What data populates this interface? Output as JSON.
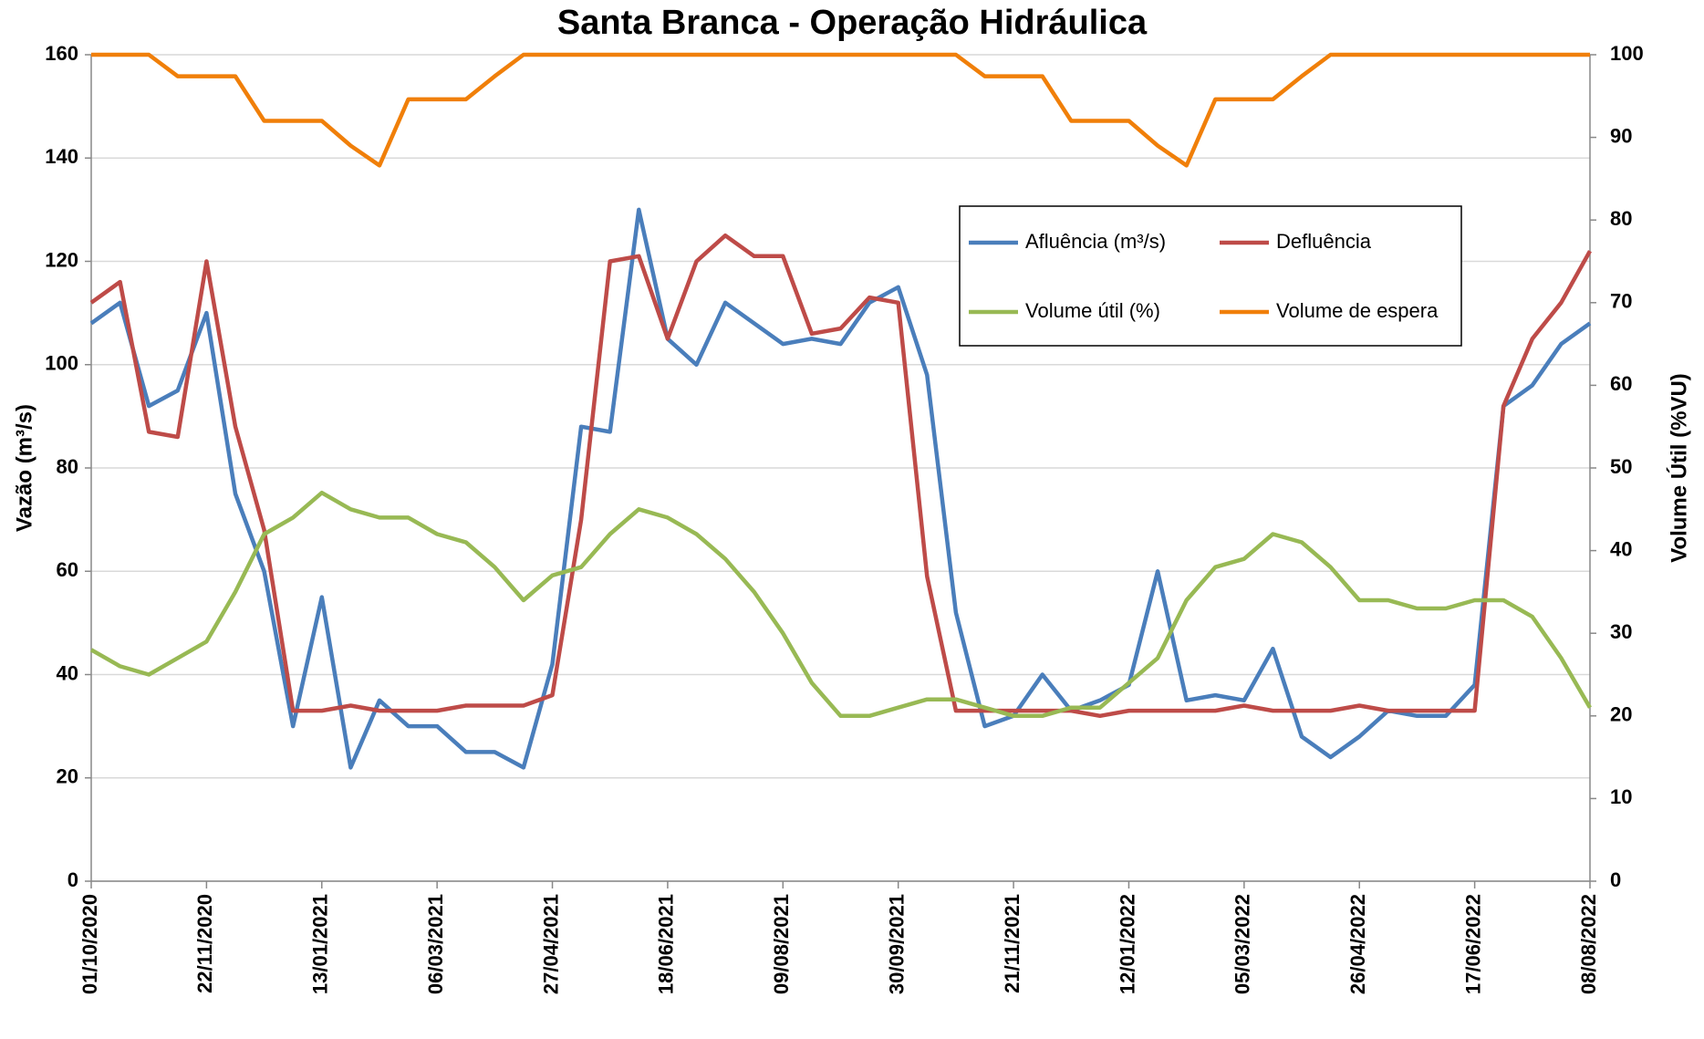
{
  "chart_data": {
    "type": "line",
    "title": "Santa Branca - Operação Hidráulica",
    "ylabel": "Vazão (m³/s)",
    "y2label": "Volume Útil (%VU)",
    "x": [
      "01/10/2020",
      "14/10/2020",
      "27/10/2020",
      "09/11/2020",
      "22/11/2020",
      "05/12/2020",
      "18/12/2020",
      "31/12/2020",
      "13/01/2021",
      "26/01/2021",
      "08/02/2021",
      "21/02/2021",
      "06/03/2021",
      "19/03/2021",
      "01/04/2021",
      "14/04/2021",
      "27/04/2021",
      "10/05/2021",
      "23/05/2021",
      "05/06/2021",
      "18/06/2021",
      "01/07/2021",
      "14/07/2021",
      "27/07/2021",
      "09/08/2021",
      "22/08/2021",
      "04/09/2021",
      "17/09/2021",
      "30/09/2021",
      "13/10/2021",
      "26/10/2021",
      "08/11/2021",
      "21/11/2021",
      "04/12/2021",
      "17/12/2021",
      "30/12/2021",
      "12/01/2022",
      "25/01/2022",
      "07/02/2022",
      "20/02/2022",
      "05/03/2022",
      "18/03/2022",
      "31/03/2022",
      "13/04/2022",
      "26/04/2022",
      "09/05/2022",
      "22/05/2022",
      "04/06/2022",
      "17/06/2022",
      "30/06/2022",
      "13/07/2022",
      "26/07/2022",
      "08/08/2022"
    ],
    "xlim": [
      "01/10/2020",
      "08/08/2022"
    ],
    "xticks": [
      "01/10/2020",
      "22/11/2020",
      "13/01/2021",
      "06/03/2021",
      "27/04/2021",
      "18/06/2021",
      "09/08/2021",
      "30/09/2021",
      "21/11/2021",
      "12/01/2022",
      "05/03/2022",
      "26/04/2022",
      "17/06/2022",
      "08/08/2022"
    ],
    "ylim": [
      0,
      160
    ],
    "yticks": [
      0,
      20,
      40,
      60,
      80,
      100,
      120,
      140,
      160
    ],
    "y2lim": [
      0,
      100
    ],
    "y2ticks": [
      0,
      10,
      20,
      30,
      40,
      50,
      60,
      70,
      80,
      90,
      100
    ],
    "grid": true,
    "legend": "upper-right",
    "series": [
      {
        "name": "Afluência (m³/s)",
        "color": "#4a7ebb",
        "values": [
          108,
          112,
          92,
          95,
          110,
          75,
          60,
          30,
          55,
          22,
          35,
          30,
          30,
          25,
          25,
          22,
          42,
          88,
          87,
          130,
          105,
          100,
          112,
          108,
          104,
          105,
          104,
          112,
          115,
          98,
          52,
          30,
          32,
          40,
          33,
          35,
          38,
          60,
          35,
          36,
          35,
          45,
          28,
          24,
          28,
          33,
          32,
          32,
          38,
          92,
          96,
          104,
          108
        ]
      },
      {
        "name": "Defluência",
        "color": "#be4b48",
        "values": [
          112,
          116,
          87,
          86,
          120,
          88,
          68,
          33,
          33,
          34,
          33,
          33,
          33,
          34,
          34,
          34,
          36,
          70,
          120,
          121,
          105,
          120,
          125,
          121,
          121,
          106,
          107,
          113,
          112,
          59,
          33,
          33,
          33,
          33,
          33,
          32,
          33,
          33,
          33,
          33,
          34,
          33,
          33,
          33,
          34,
          33,
          33,
          33,
          33,
          92,
          105,
          112,
          122
        ]
      },
      {
        "name": "Volume útil (%)",
        "color": "#98b954",
        "axis": "y2",
        "values": [
          28,
          26,
          25,
          27,
          29,
          35,
          42,
          44,
          47,
          45,
          44,
          44,
          42,
          41,
          38,
          34,
          37,
          38,
          42,
          45,
          44,
          42,
          39,
          35,
          30,
          24,
          20,
          20,
          21,
          22,
          22,
          21,
          20,
          20,
          21,
          21,
          24,
          27,
          34,
          38,
          39,
          42,
          41,
          38,
          34,
          34,
          33,
          33,
          34,
          34,
          32,
          27,
          21
        ]
      },
      {
        "name": "Volume de espera",
        "color": "#f07f09",
        "axis": "y2",
        "values": [
          100,
          100,
          100,
          97.4,
          97.4,
          97.4,
          92,
          92,
          92,
          89,
          86.6,
          94.6,
          94.6,
          94.6,
          97.4,
          100,
          100,
          100,
          100,
          100,
          100,
          100,
          100,
          100,
          100,
          100,
          100,
          100,
          100,
          100,
          100,
          97.4,
          97.4,
          97.4,
          92,
          92,
          92,
          89,
          86.6,
          94.6,
          94.6,
          94.6,
          97.4,
          100,
          100,
          100,
          100,
          100,
          100,
          100,
          100,
          100,
          100
        ]
      }
    ]
  }
}
